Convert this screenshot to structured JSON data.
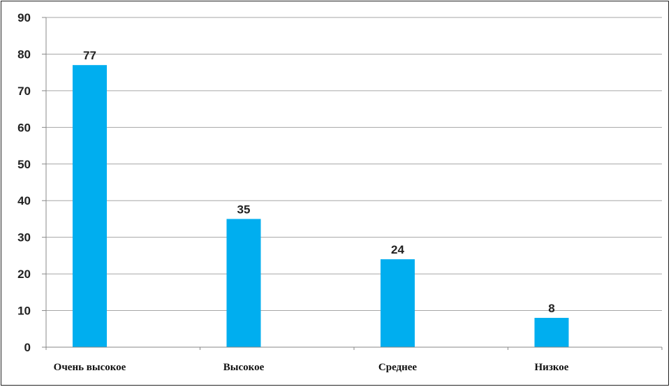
{
  "chart_data": {
    "type": "bar",
    "categories": [
      "Очень высокое",
      "Высокое",
      "Среднее",
      "Низкое"
    ],
    "values": [
      77,
      35,
      24,
      8
    ],
    "data_labels": [
      "77",
      "35",
      "24",
      "8"
    ],
    "yticks": [
      "0",
      "10",
      "20",
      "30",
      "40",
      "50",
      "60",
      "70",
      "80",
      "90"
    ],
    "ylim": [
      0,
      90
    ],
    "grid": true,
    "bar_color": "#00AEEF",
    "grid_color": "#A6A6A6"
  }
}
